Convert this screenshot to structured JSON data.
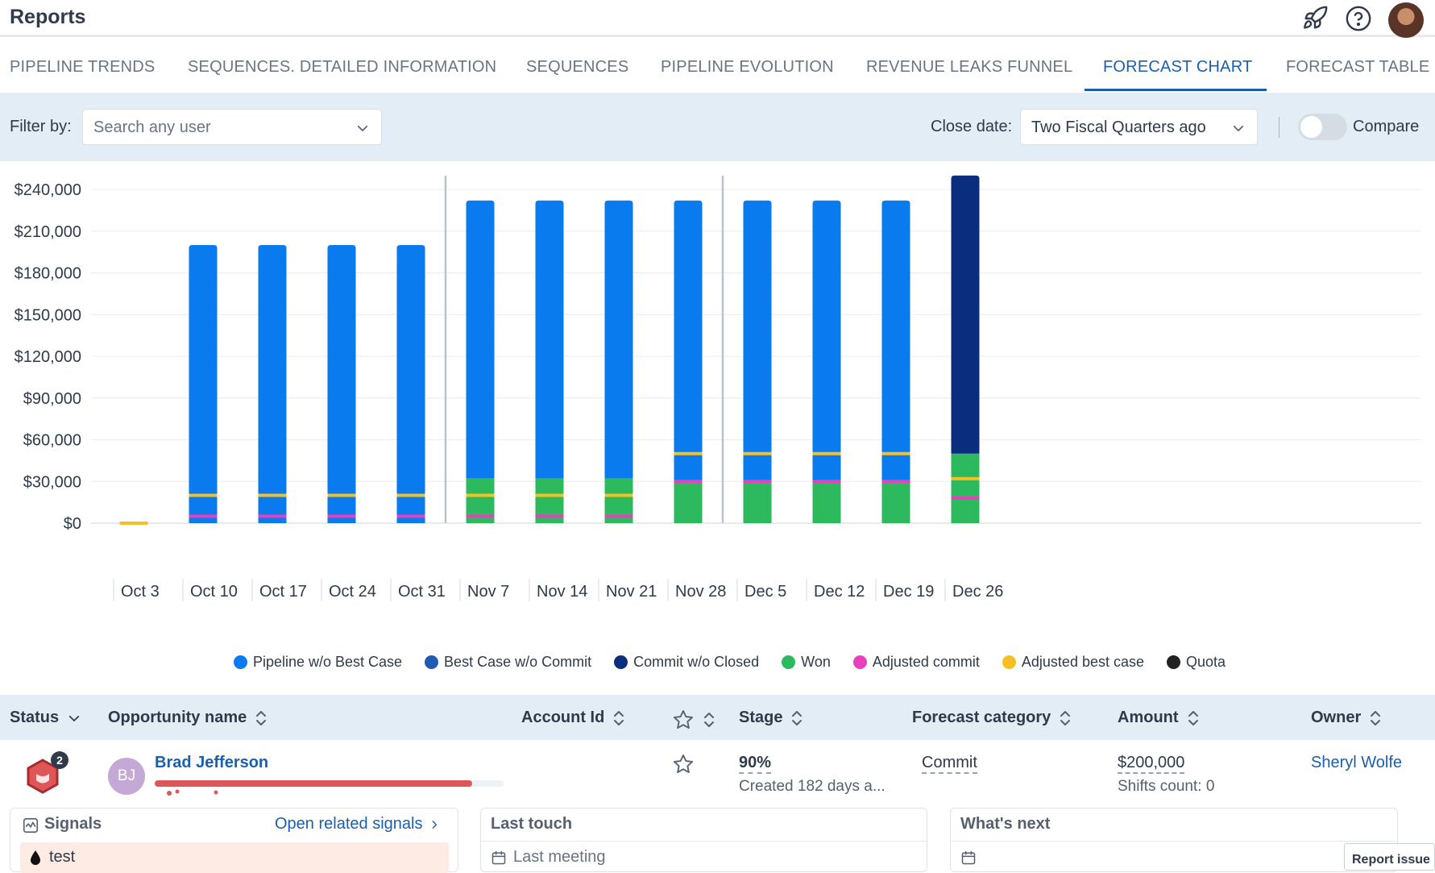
{
  "app": {
    "title": "Reports"
  },
  "tabs": [
    {
      "label": "PIPELINE TRENDS"
    },
    {
      "label": "SEQUENCES. DETAILED INFORMATION"
    },
    {
      "label": "SEQUENCES"
    },
    {
      "label": "PIPELINE EVOLUTION"
    },
    {
      "label": "REVENUE LEAKS FUNNEL"
    },
    {
      "label": "FORECAST CHART",
      "active": true
    },
    {
      "label": "FORECAST TABLE"
    }
  ],
  "filters": {
    "filter_label": "Filter by:",
    "user_placeholder": "Search any user",
    "close_date_label": "Close date:",
    "close_date_value": "Two Fiscal Quarters ago",
    "compare_label": "Compare",
    "compare_enabled": false
  },
  "chart_data": {
    "type": "bar",
    "stacked": true,
    "categories": [
      "Oct 3",
      "Oct 10",
      "Oct 17",
      "Oct 24",
      "Oct 31",
      "Nov 7",
      "Nov 14",
      "Nov 21",
      "Nov 28",
      "Dec 5",
      "Dec 12",
      "Dec 19",
      "Dec 26"
    ],
    "y_ticks": [
      "$0",
      "$30,000",
      "$60,000",
      "$90,000",
      "$120,000",
      "$150,000",
      "$180,000",
      "$210,000",
      "$240,000"
    ],
    "ylim": [
      0,
      240000
    ],
    "grid": true,
    "legend_position": "bottom",
    "series": [
      {
        "name": "Won",
        "color": "#2dba5e",
        "values": [
          0,
          0,
          0,
          0,
          0,
          32000,
          32000,
          32000,
          30000,
          30000,
          30000,
          30000,
          50000
        ]
      },
      {
        "name": "Pipeline w/o Best Case",
        "color": "#0a7aef",
        "values": [
          0,
          200000,
          200000,
          200000,
          200000,
          200000,
          200000,
          200000,
          202000,
          202000,
          202000,
          202000,
          0
        ]
      },
      {
        "name": "Best Case w/o Commit",
        "color": "#1f5bb5",
        "values": [
          0,
          0,
          0,
          0,
          0,
          0,
          0,
          0,
          0,
          0,
          0,
          0,
          0
        ]
      },
      {
        "name": "Commit w/o Closed",
        "color": "#0a2d7e",
        "values": [
          0,
          0,
          0,
          0,
          0,
          0,
          0,
          0,
          0,
          0,
          0,
          0,
          200000
        ]
      }
    ],
    "markers": [
      {
        "name": "Adjusted commit",
        "color": "#ea3fbd",
        "values": [
          null,
          5000,
          5000,
          5000,
          5000,
          5000,
          5000,
          5000,
          30000,
          30000,
          30000,
          30000,
          18000
        ]
      },
      {
        "name": "Adjusted best case",
        "color": "#f6c024",
        "values": [
          0,
          20000,
          20000,
          20000,
          20000,
          20000,
          20000,
          20000,
          50000,
          50000,
          50000,
          50000,
          32000
        ]
      },
      {
        "name": "Quota",
        "color": "#222222",
        "values": [
          null,
          null,
          null,
          null,
          null,
          null,
          null,
          null,
          null,
          null,
          null,
          null,
          null
        ]
      }
    ],
    "period_dividers_after": [
      "Oct 31",
      "Nov 28"
    ]
  },
  "legend": [
    {
      "label": "Pipeline w/o Best Case",
      "color": "#0a7aef"
    },
    {
      "label": "Best Case w/o Commit",
      "color": "#1f5bb5"
    },
    {
      "label": "Commit w/o Closed",
      "color": "#0a2d7e"
    },
    {
      "label": "Won",
      "color": "#2dba5e"
    },
    {
      "label": "Adjusted commit",
      "color": "#ea3fbd"
    },
    {
      "label": "Adjusted best case",
      "color": "#f6c024"
    },
    {
      "label": "Quota",
      "color": "#222222"
    }
  ],
  "table": {
    "headers": {
      "status": "Status",
      "opportunity": "Opportunity name",
      "account": "Account Id",
      "stage": "Stage",
      "forecast": "Forecast category",
      "amount": "Amount",
      "owner": "Owner"
    },
    "row": {
      "badge_count": "2",
      "initials": "BJ",
      "name": "Brad Jefferson",
      "stage": "90%",
      "created": "Created 182 days a...",
      "forecast_category": "Commit",
      "amount": "$200,000",
      "shifts": "Shifts count: 0",
      "owner": "Sheryl Wolfe",
      "health_progress": 0.91
    }
  },
  "cards": {
    "signals_title": "Signals",
    "open_signals": "Open related signals",
    "signal_item": "test",
    "last_touch_title": "Last touch",
    "last_meeting": "Last meeting",
    "whats_next_title": "What's next"
  },
  "footer": {
    "report_issue": "Report issue"
  }
}
